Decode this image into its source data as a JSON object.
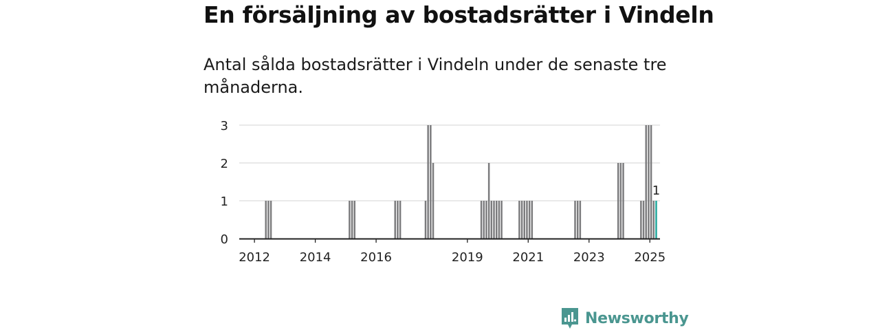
{
  "header": {
    "title": "En försäljning av bostadsrätter i Vindeln",
    "subtitle": "Antal sålda bostadsrätter i Vindeln under de senaste tre månaderna."
  },
  "brand": {
    "name": "Newsworthy",
    "icon": "newsworthy-logo-icon"
  },
  "colors": {
    "bar": "#7b7b7d",
    "highlight": "#1fa59a",
    "grid": "#dcdcdc",
    "axis": "#222222",
    "brand": "#4a9690"
  },
  "chart_data": {
    "type": "bar",
    "x_axis": "month",
    "xlim": [
      "2011-07",
      "2025-05"
    ],
    "ylim": [
      0,
      3
    ],
    "yticks": [
      0,
      1,
      2,
      3
    ],
    "xticks": [
      "2012",
      "2014",
      "2016",
      "2019",
      "2021",
      "2023",
      "2025"
    ],
    "grid": true,
    "series": [
      {
        "points": [
          {
            "x": "2012-05",
            "y": 1
          },
          {
            "x": "2012-06",
            "y": 1
          },
          {
            "x": "2012-07",
            "y": 1
          },
          {
            "x": "2015-02",
            "y": 1
          },
          {
            "x": "2015-03",
            "y": 1
          },
          {
            "x": "2015-04",
            "y": 1
          },
          {
            "x": "2016-08",
            "y": 1
          },
          {
            "x": "2016-09",
            "y": 1
          },
          {
            "x": "2016-10",
            "y": 1
          },
          {
            "x": "2017-08",
            "y": 1
          },
          {
            "x": "2017-09",
            "y": 3
          },
          {
            "x": "2017-10",
            "y": 3
          },
          {
            "x": "2017-11",
            "y": 2
          },
          {
            "x": "2019-06",
            "y": 1
          },
          {
            "x": "2019-07",
            "y": 1
          },
          {
            "x": "2019-08",
            "y": 1
          },
          {
            "x": "2019-09",
            "y": 2
          },
          {
            "x": "2019-10",
            "y": 1
          },
          {
            "x": "2019-11",
            "y": 1
          },
          {
            "x": "2019-12",
            "y": 1
          },
          {
            "x": "2020-01",
            "y": 1
          },
          {
            "x": "2020-02",
            "y": 1
          },
          {
            "x": "2020-09",
            "y": 1
          },
          {
            "x": "2020-10",
            "y": 1
          },
          {
            "x": "2020-11",
            "y": 1
          },
          {
            "x": "2020-12",
            "y": 1
          },
          {
            "x": "2021-01",
            "y": 1
          },
          {
            "x": "2021-02",
            "y": 1
          },
          {
            "x": "2022-07",
            "y": 1
          },
          {
            "x": "2022-08",
            "y": 1
          },
          {
            "x": "2022-09",
            "y": 1
          },
          {
            "x": "2023-12",
            "y": 2
          },
          {
            "x": "2024-01",
            "y": 2
          },
          {
            "x": "2024-02",
            "y": 2
          },
          {
            "x": "2024-09",
            "y": 1
          },
          {
            "x": "2024-10",
            "y": 1
          },
          {
            "x": "2024-11",
            "y": 3
          },
          {
            "x": "2024-12",
            "y": 3
          },
          {
            "x": "2025-01",
            "y": 3
          },
          {
            "x": "2025-02",
            "y": 1
          }
        ]
      }
    ],
    "highlight": {
      "x": "2025-03",
      "y": 1,
      "label": "1"
    }
  }
}
